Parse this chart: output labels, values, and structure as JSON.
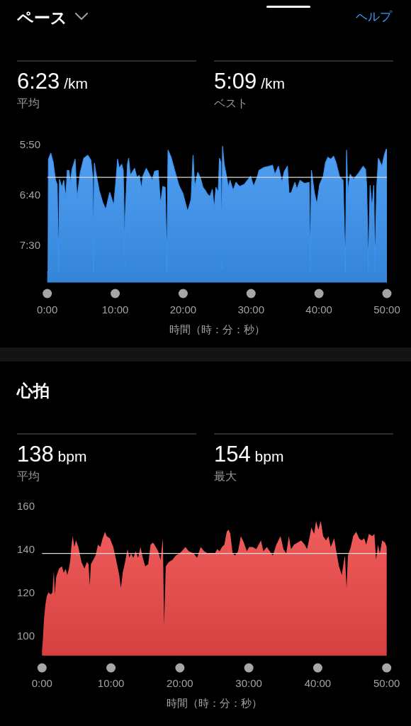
{
  "chart_data": [
    {
      "type": "line",
      "title": "ペース",
      "xlabel": "時間（時：分：秒）",
      "annotations": [
        "ヘルプ",
        "6:23 /km",
        "平均",
        "5:09 /km",
        "ベスト"
      ],
      "x": [
        0,
        0.12,
        0.17,
        0.52,
        0.87,
        1.22,
        1.46,
        1.67,
        1.8,
        2.15,
        2.43,
        2.71,
        2.95,
        3.19,
        3.4,
        3.65,
        4.1,
        4.38,
        4.86,
        5.38,
        5.97,
        6.42,
        6.7,
        6.77,
        6.94,
        7.12,
        7.64,
        8.16,
        8.61,
        9.2,
        9.79,
        10.14,
        10.35,
        10.59,
        10.94,
        11.18,
        11.28,
        11.39,
        11.49,
        11.81,
        11.98,
        12.22,
        12.85,
        13.19,
        13.54,
        13.89,
        14.06,
        14.58,
        15.1,
        15.45,
        15.8,
        16.32,
        16.67,
        17.01,
        17.36,
        17.6,
        17.78,
        18.23,
        18.75,
        19.38,
        19.97,
        20.66,
        21.18,
        21.46,
        21.7,
        22.15,
        22.57,
        22.92,
        23.26,
        23.61,
        23.96,
        24.3,
        24.58,
        24.83,
        25.17,
        25.35,
        25.56,
        25.69,
        25.8,
        26.04,
        26.39,
        26.67,
        26.91,
        27.36,
        27.78,
        28.3,
        29.0,
        29.69,
        29.93,
        30.38,
        30.9,
        31.18,
        31.94,
        32.64,
        33.16,
        33.51,
        34.03,
        34.55,
        34.9,
        35.35,
        35.59,
        35.94,
        36.46,
        36.74,
        37.22,
        37.85,
        38.54,
        38.72,
        38.89,
        39.31,
        39.69,
        40.1,
        40.63,
        40.97,
        41.32,
        41.74,
        42.15,
        42.5,
        43.02,
        43.54,
        43.89,
        44.06,
        44.24,
        44.59,
        45.1,
        45.8,
        46.5,
        46.85,
        47.02,
        47.26,
        47.53,
        47.81,
        48.06,
        48.23,
        48.5,
        48.75,
        49.27,
        49.62,
        49.9,
        50
      ],
      "values": [
        477,
        477,
        365,
        359,
        368,
        386,
        390,
        477,
        385,
        393,
        386,
        404,
        376,
        376,
        389,
        375,
        365,
        404,
        378,
        364,
        361,
        366,
        384,
        477,
        369,
        377,
        396,
        408,
        415,
        398,
        411,
        384,
        365,
        374,
        370,
        376,
        408,
        474,
        419,
        370,
        364,
        381,
        374,
        383,
        381,
        395,
        382,
        374,
        381,
        386,
        377,
        376,
        410,
        392,
        393,
        477,
        356,
        363,
        376,
        391,
        399,
        417,
        405,
        361,
        393,
        378,
        384,
        393,
        396,
        400,
        402,
        395,
        415,
        393,
        398,
        364,
        368,
        474,
        352,
        370,
        382,
        393,
        386,
        396,
        388,
        392,
        390,
        384,
        382,
        392,
        383,
        376,
        373,
        372,
        371,
        380,
        372,
        388,
        377,
        372,
        399,
        398,
        388,
        395,
        386,
        389,
        388,
        477,
        376,
        398,
        410,
        390,
        382,
        368,
        363,
        365,
        362,
        368,
        382,
        386,
        477,
        356,
        398,
        380,
        385,
        379,
        372,
        375,
        391,
        476,
        391,
        415,
        391,
        477,
        393,
        364,
        372,
        361,
        355,
        355
      ],
      "upper": [
        477,
        477,
        365,
        359,
        368,
        386,
        390,
        477,
        385,
        393,
        386,
        404,
        376,
        376,
        389,
        375,
        365,
        404,
        378,
        364,
        361,
        366,
        384,
        477,
        369,
        377,
        396,
        408,
        415,
        398,
        411,
        384,
        365,
        374,
        370,
        376,
        408,
        474,
        419,
        370,
        364,
        381,
        374,
        383,
        381,
        395,
        382,
        374,
        381,
        386,
        377,
        376,
        410,
        392,
        393,
        477,
        356,
        363,
        376,
        391,
        399,
        417,
        405,
        361,
        393,
        378,
        384,
        393,
        396,
        400,
        402,
        395,
        415,
        393,
        398,
        364,
        368,
        474,
        352,
        370,
        382,
        393,
        386,
        396,
        388,
        392,
        390,
        384,
        382,
        392,
        383,
        376,
        373,
        372,
        371,
        380,
        372,
        388,
        377,
        372,
        399,
        398,
        388,
        395,
        386,
        389,
        388,
        477,
        376,
        398,
        410,
        390,
        382,
        368,
        363,
        365,
        362,
        368,
        382,
        386,
        477,
        356,
        398,
        380,
        385,
        379,
        372,
        375,
        391,
        476,
        391,
        415,
        391,
        477,
        393,
        364,
        372,
        361,
        355,
        355
      ],
      "lower": [
        487,
        487,
        487,
        487,
        487,
        487,
        487,
        487,
        487,
        487,
        487,
        487,
        487,
        487,
        487,
        487,
        487,
        487,
        487,
        487,
        487,
        487,
        487,
        487,
        487,
        487,
        487,
        487,
        487,
        487,
        487,
        487,
        487,
        487,
        487,
        487,
        487,
        487,
        487,
        487,
        487,
        487,
        487,
        487,
        487,
        487,
        487,
        487,
        487,
        487,
        487,
        487,
        487,
        487,
        487,
        487,
        487,
        487,
        487,
        487,
        487,
        487,
        487,
        487,
        487,
        487,
        487,
        487,
        487,
        487,
        487,
        487,
        487,
        487,
        487,
        487,
        487,
        487,
        487,
        487,
        487,
        487,
        487,
        487,
        487,
        487,
        487,
        487,
        487,
        487,
        487,
        487,
        487,
        487,
        487,
        487,
        487,
        487,
        487,
        487,
        487,
        487,
        487,
        487,
        487,
        487,
        487,
        487,
        487,
        487,
        487,
        487,
        487,
        487,
        487,
        487,
        487,
        487,
        487,
        487,
        487,
        487,
        487,
        487,
        487,
        487,
        487,
        487,
        487,
        487,
        487,
        487,
        487,
        487,
        487,
        487,
        487,
        487,
        487,
        487
      ],
      "color": "#3a93f0",
      "xlim": [
        0,
        50
      ],
      "xticks": [
        {
          "value": 0,
          "label": "0:00"
        },
        {
          "value": 10,
          "label": "10:00"
        },
        {
          "value": 20,
          "label": "20:00"
        },
        {
          "value": 30,
          "label": "30:00"
        },
        {
          "value": 40,
          "label": "40:00"
        },
        {
          "value": 50,
          "label": "50:00"
        }
      ],
      "ylim": [
        487,
        350
      ],
      "yticks": [
        {
          "value": 350,
          "label": "5:50"
        },
        {
          "value": 400,
          "label": "6:40"
        },
        {
          "value": 450,
          "label": "7:30"
        }
      ],
      "ref_lines": [
        {
          "axis": "y",
          "value": 383,
          "color": "#d9d9d9"
        }
      ]
    },
    {
      "type": "area",
      "title": "心拍",
      "xlabel": "時間（時：分：秒）",
      "annotations": [
        "138 bpm",
        "平均",
        "154 bpm",
        "最大"
      ],
      "x": [
        0,
        0.14,
        0.27,
        0.48,
        0.68,
        0.92,
        1.27,
        1.51,
        1.71,
        1.85,
        2.05,
        2.47,
        2.88,
        3.15,
        3.42,
        3.66,
        3.9,
        4.11,
        4.25,
        4.45,
        4.69,
        4.93,
        5.27,
        5.72,
        6.16,
        6.51,
        6.75,
        6.92,
        7.09,
        7.43,
        7.77,
        8.12,
        8.46,
        8.8,
        9.14,
        9.38,
        9.83,
        10.34,
        10.75,
        11.2,
        11.44,
        11.71,
        12.05,
        12.4,
        12.67,
        12.91,
        13.25,
        13.6,
        13.94,
        14.28,
        14.62,
        14.97,
        15.41,
        15.75,
        16.1,
        16.51,
        16.85,
        17.19,
        17.53,
        17.71,
        17.95,
        18.39,
        18.9,
        19.42,
        19.93,
        20.27,
        20.79,
        21.3,
        21.99,
        22.5,
        23.01,
        23.53,
        24.04,
        24.55,
        25.08,
        25.42,
        25.77,
        26.11,
        26.45,
        26.8,
        27.07,
        27.31,
        27.65,
        28.0,
        28.44,
        28.85,
        29.27,
        29.71,
        30.05,
        30.57,
        31.08,
        31.42,
        31.76,
        32.11,
        32.62,
        33.03,
        33.48,
        33.99,
        34.6,
        35.02,
        35.43,
        35.81,
        36.12,
        36.56,
        37.08,
        37.59,
        38.11,
        38.45,
        38.79,
        39.07,
        39.48,
        39.75,
        40.09,
        40.44,
        40.78,
        41.19,
        41.54,
        41.88,
        42.39,
        42.74,
        43.08,
        43.49,
        43.77,
        43.94,
        44.18,
        44.38,
        44.79,
        45.14,
        45.58,
        45.99,
        46.34,
        46.75,
        47.02,
        47.43,
        47.88,
        48.22,
        48.46,
        48.73,
        49.0,
        49.35,
        49.76,
        50
      ],
      "values": [
        93,
        99,
        107,
        114,
        118,
        120,
        119,
        120,
        130,
        119,
        127,
        131,
        132,
        129,
        131,
        128,
        131,
        135,
        141,
        146,
        141,
        144,
        141,
        134,
        131,
        134,
        133,
        123,
        133,
        135,
        137,
        142,
        141,
        145,
        148,
        146,
        145,
        141,
        135,
        128,
        122,
        129,
        134,
        140,
        136,
        138,
        136,
        139,
        136,
        141,
        136,
        132,
        133,
        142,
        143,
        141,
        139,
        135,
        145,
        105,
        132,
        134,
        135,
        137,
        138,
        139,
        141,
        139,
        138,
        136,
        141,
        139,
        138,
        138,
        138,
        140,
        139,
        141,
        142,
        148,
        149,
        147,
        138,
        137,
        139,
        146,
        143,
        139,
        141,
        141,
        140,
        142,
        144,
        139,
        141,
        139,
        137,
        142,
        146,
        140,
        138,
        146,
        140,
        142,
        143,
        144,
        142,
        140,
        145,
        150,
        147,
        153,
        149,
        153,
        146,
        144,
        146,
        141,
        145,
        138,
        132,
        128,
        134,
        137,
        122,
        137,
        141,
        146,
        148,
        145,
        144,
        145,
        142,
        147,
        146,
        147,
        135,
        142,
        138,
        144,
        143,
        141
      ],
      "color": "#ee4747",
      "xlim": [
        0,
        50
      ],
      "xticks": [
        {
          "value": 0,
          "label": "0:00"
        },
        {
          "value": 10,
          "label": "10:00"
        },
        {
          "value": 20,
          "label": "20:00"
        },
        {
          "value": 30,
          "label": "30:00"
        },
        {
          "value": 40,
          "label": "40:00"
        },
        {
          "value": 50,
          "label": "50:00"
        }
      ],
      "ylim": [
        91,
        160
      ],
      "yticks": [
        100,
        120,
        140,
        160
      ],
      "ref_lines": [
        {
          "axis": "y",
          "value": 138,
          "color": "#d9d9d9"
        }
      ]
    }
  ]
}
